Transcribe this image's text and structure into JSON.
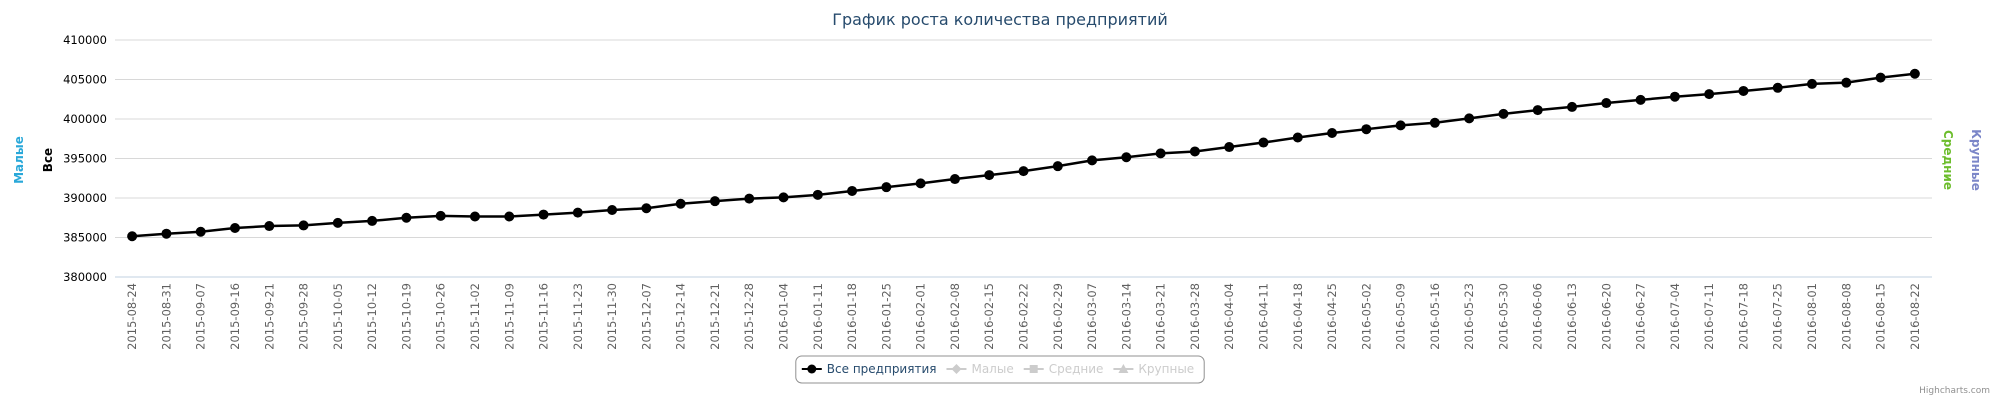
{
  "chart_data": {
    "type": "line",
    "title": "График роста количества предприятий",
    "categories": [
      "2015-08-24",
      "2015-08-31",
      "2015-09-07",
      "2015-09-16",
      "2015-09-21",
      "2015-09-28",
      "2015-10-05",
      "2015-10-12",
      "2015-10-19",
      "2015-10-26",
      "2015-11-02",
      "2015-11-09",
      "2015-11-16",
      "2015-11-23",
      "2015-11-30",
      "2015-12-07",
      "2015-12-14",
      "2015-12-21",
      "2015-12-28",
      "2016-01-04",
      "2016-01-11",
      "2016-01-18",
      "2016-01-25",
      "2016-02-01",
      "2016-02-08",
      "2016-02-15",
      "2016-02-22",
      "2016-02-29",
      "2016-03-07",
      "2016-03-14",
      "2016-03-21",
      "2016-03-28",
      "2016-04-04",
      "2016-04-11",
      "2016-04-18",
      "2016-04-25",
      "2016-05-02",
      "2016-05-09",
      "2016-05-16",
      "2016-05-23",
      "2016-05-30",
      "2016-06-06",
      "2016-06-13",
      "2016-06-20",
      "2016-06-27",
      "2016-07-04",
      "2016-07-11",
      "2016-07-18",
      "2016-07-25",
      "2016-08-01",
      "2016-08-08",
      "2016-08-15",
      "2016-08-22"
    ],
    "series": [
      {
        "name": "Все предприятия",
        "color": "#000000",
        "visible": true,
        "values": [
          385160,
          385480,
          385730,
          386200,
          386450,
          386530,
          386850,
          387100,
          387500,
          387740,
          387660,
          387660,
          387900,
          388150,
          388480,
          388700,
          389270,
          389600,
          389920,
          390080,
          390400,
          390890,
          391370,
          391850,
          392400,
          392900,
          393400,
          394030,
          394760,
          395160,
          395650,
          395890,
          396450,
          397020,
          397660,
          398230,
          398710,
          399190,
          399520,
          400080,
          400650,
          401130,
          401530,
          402020,
          402420,
          402820,
          403150,
          403550,
          403950,
          404440,
          404600,
          405240,
          405730
        ]
      },
      {
        "name": "Малые",
        "color": "#29a8d9",
        "visible": false,
        "marker": "diamond"
      },
      {
        "name": "Средние",
        "color": "#6cbd2c",
        "visible": false,
        "marker": "square"
      },
      {
        "name": "Крупные",
        "color": "#7b86c8",
        "visible": false,
        "marker": "triangle"
      }
    ],
    "axis_titles": [
      {
        "title": "Малые",
        "color": "#29a8d9",
        "side": "left"
      },
      {
        "title": "Все",
        "color": "#000000",
        "side": "left"
      },
      {
        "title": "Средние",
        "color": "#6cbd2c",
        "side": "right"
      },
      {
        "title": "Крупные",
        "color": "#7b86c8",
        "side": "right"
      }
    ],
    "ylim": [
      380000,
      410000
    ],
    "yticks": [
      380000,
      385000,
      390000,
      395000,
      400000,
      405000,
      410000
    ],
    "grid": true,
    "legend": "bottom",
    "credits": "Highcharts.com"
  }
}
